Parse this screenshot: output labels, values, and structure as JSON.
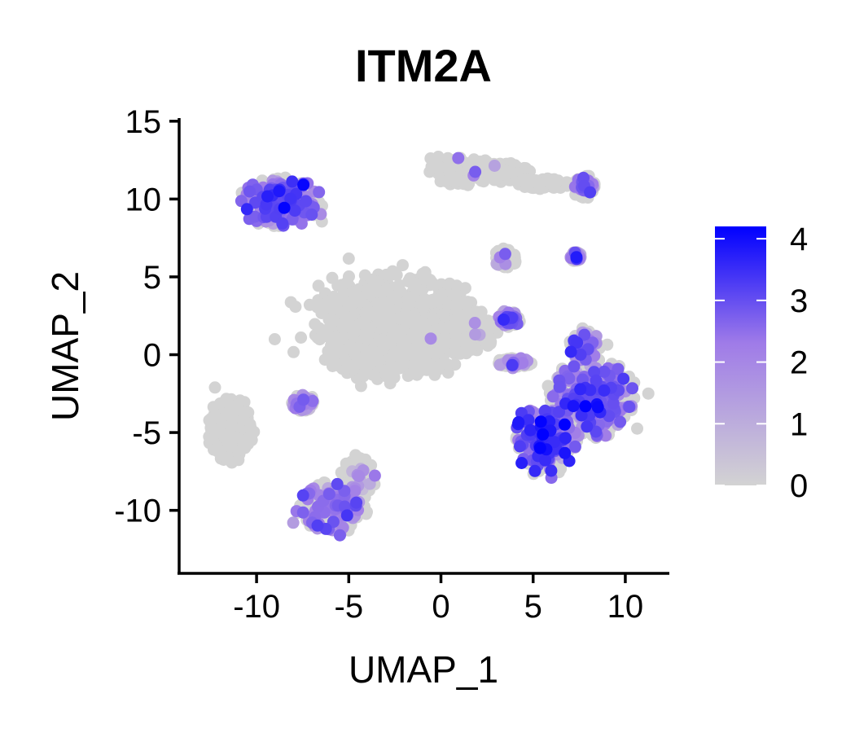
{
  "chart_data": {
    "type": "scatter",
    "title": "ITM2A",
    "xlabel": "UMAP_1",
    "ylabel": "UMAP_2",
    "xlim": [
      -14.2,
      12.3
    ],
    "ylim": [
      -14.1,
      15.2
    ],
    "x_ticks": [
      -10,
      -5,
      0,
      5,
      10
    ],
    "y_ticks": [
      -10,
      -5,
      0,
      5,
      10,
      15
    ],
    "grid": false,
    "legend": {
      "type": "colorbar",
      "placement": "right",
      "ticks": [
        0,
        1,
        2,
        3,
        4
      ],
      "min": 0,
      "max": 4.2,
      "color_low": "#d3d3d3",
      "color_high": "#0000ff"
    },
    "clusters": [
      {
        "cx": -2.5,
        "cy": 2.0,
        "rx": 4.5,
        "ry": 3.3,
        "expr_frac": 0.0,
        "expr_level": 0
      },
      {
        "cx": 1.2,
        "cy": 1.5,
        "rx": 2.0,
        "ry": 1.4,
        "expr_frac": 0.01,
        "expr_level": 2
      },
      {
        "cx": -4.8,
        "cy": -0.3,
        "rx": 1.5,
        "ry": 0.8,
        "expr_frac": 0.0,
        "expr_level": 0
      },
      {
        "cx": -8.7,
        "cy": 9.8,
        "rx": 2.2,
        "ry": 1.6,
        "expr_frac": 0.55,
        "expr_level": 2.4
      },
      {
        "cx": -11.4,
        "cy": -4.8,
        "rx": 1.2,
        "ry": 2.1,
        "expr_frac": 0.0,
        "expr_level": 0
      },
      {
        "cx": -5.9,
        "cy": -9.8,
        "rx": 1.9,
        "ry": 1.6,
        "expr_frac": 0.4,
        "expr_level": 2.1
      },
      {
        "cx": -4.5,
        "cy": -8.0,
        "rx": 0.9,
        "ry": 1.3,
        "expr_frac": 0.05,
        "expr_level": 1.5
      },
      {
        "cx": -7.5,
        "cy": -3.1,
        "rx": 0.6,
        "ry": 0.5,
        "expr_frac": 0.3,
        "expr_level": 1.5
      },
      {
        "cx": 1.2,
        "cy": 11.8,
        "rx": 1.8,
        "ry": 0.9,
        "expr_frac": 0.02,
        "expr_level": 2
      },
      {
        "cx": 3.5,
        "cy": 11.7,
        "rx": 1.3,
        "ry": 0.6,
        "expr_frac": 0.0,
        "expr_level": 0
      },
      {
        "cx": 5.6,
        "cy": 11.0,
        "rx": 1.5,
        "ry": 0.35,
        "expr_frac": 0.0,
        "expr_level": 0
      },
      {
        "cx": 7.8,
        "cy": 10.8,
        "rx": 0.6,
        "ry": 0.7,
        "expr_frac": 0.25,
        "expr_level": 2
      },
      {
        "cx": 3.5,
        "cy": 6.2,
        "rx": 0.6,
        "ry": 0.6,
        "expr_frac": 0.1,
        "expr_level": 2.2
      },
      {
        "cx": 3.7,
        "cy": 2.3,
        "rx": 0.6,
        "ry": 0.45,
        "expr_frac": 0.3,
        "expr_level": 2.2
      },
      {
        "cx": 7.3,
        "cy": 6.3,
        "rx": 0.3,
        "ry": 0.3,
        "expr_frac": 0.6,
        "expr_level": 1.6
      },
      {
        "cx": 4.0,
        "cy": -0.5,
        "rx": 0.9,
        "ry": 0.3,
        "expr_frac": 0.2,
        "expr_level": 2
      },
      {
        "cx": 8.3,
        "cy": -2.8,
        "rx": 2.3,
        "ry": 2.5,
        "expr_frac": 0.5,
        "expr_level": 2.3
      },
      {
        "cx": 5.6,
        "cy": -5.5,
        "rx": 1.7,
        "ry": 2.2,
        "expr_frac": 0.55,
        "expr_level": 2.7
      },
      {
        "cx": 7.8,
        "cy": 0.5,
        "rx": 0.8,
        "ry": 1.0,
        "expr_frac": 0.4,
        "expr_level": 2
      }
    ]
  }
}
